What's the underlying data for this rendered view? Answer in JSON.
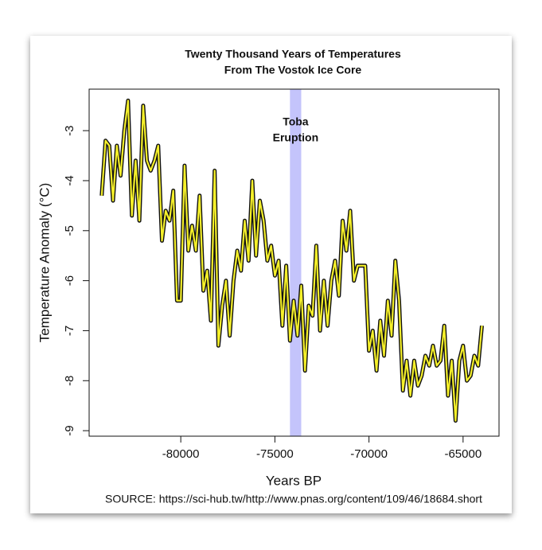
{
  "chart_data": {
    "type": "line",
    "title": "Twenty Thousand Years of Temperatures",
    "subtitle": "From The Vostok Ice Core",
    "xlabel": "Years BP",
    "ylabel": "Temperature Anomaly (°C)",
    "source": "SOURCE: https://sci-hub.tw/http://www.pnas.org/content/109/46/18684.short",
    "annotation": [
      "Toba",
      "Eruption"
    ],
    "band": [
      -74200,
      -73600
    ],
    "band_color": "#c4c4fb",
    "x": [
      -84200,
      -84000,
      -83800,
      -83600,
      -83400,
      -83200,
      -83000,
      -82800,
      -82600,
      -82400,
      -82200,
      -82000,
      -81800,
      -81600,
      -81400,
      -81200,
      -81000,
      -80800,
      -80600,
      -80400,
      -80200,
      -80000,
      -79800,
      -79600,
      -79400,
      -79200,
      -79000,
      -78800,
      -78600,
      -78400,
      -78200,
      -78000,
      -77800,
      -77600,
      -77400,
      -77200,
      -77000,
      -76800,
      -76600,
      -76400,
      -76200,
      -76000,
      -75800,
      -75600,
      -75400,
      -75200,
      -75000,
      -74800,
      -74600,
      -74400,
      -74200,
      -74000,
      -73800,
      -73600,
      -73400,
      -73200,
      -73000,
      -72800,
      -72600,
      -72400,
      -72200,
      -72000,
      -71800,
      -71600,
      -71400,
      -71200,
      -71000,
      -70800,
      -70600,
      -70400,
      -70200,
      -70000,
      -69800,
      -69600,
      -69400,
      -69200,
      -69000,
      -68800,
      -68600,
      -68400,
      -68200,
      -68000,
      -67800,
      -67600,
      -67400,
      -67200,
      -67000,
      -66800,
      -66600,
      -66400,
      -66200,
      -66000,
      -65800,
      -65600,
      -65400,
      -65200,
      -65000,
      -64800,
      -64600,
      -64400,
      -64200,
      -64000
    ],
    "series": [
      {
        "color": "#f5f02a",
        "outline": "#111111",
        "values": [
          -4.3,
          -3.2,
          -3.3,
          -4.4,
          -3.3,
          -3.9,
          -3.0,
          -2.4,
          -4.7,
          -3.6,
          -4.8,
          -2.5,
          -3.6,
          -3.8,
          -3.6,
          -3.3,
          -5.2,
          -4.6,
          -4.8,
          -4.2,
          -6.4,
          -6.4,
          -3.7,
          -5.4,
          -4.9,
          -5.4,
          -4.3,
          -6.2,
          -5.8,
          -6.8,
          -3.8,
          -7.3,
          -6.5,
          -6.0,
          -7.1,
          -6.0,
          -5.4,
          -5.8,
          -4.8,
          -5.6,
          -4.0,
          -5.5,
          -4.4,
          -4.8,
          -5.6,
          -5.3,
          -5.9,
          -5.6,
          -6.9,
          -5.7,
          -7.2,
          -6.4,
          -7.1,
          -6.1,
          -7.8,
          -6.5,
          -6.7,
          -5.3,
          -7.0,
          -6.0,
          -6.9,
          -6.0,
          -5.6,
          -6.3,
          -4.8,
          -5.4,
          -4.6,
          -6.0,
          -5.7,
          -5.7,
          -5.7,
          -7.4,
          -7.0,
          -7.8,
          -6.8,
          -7.5,
          -6.4,
          -7.1,
          -5.6,
          -6.4,
          -8.2,
          -7.6,
          -8.3,
          -7.6,
          -8.1,
          -7.9,
          -7.5,
          -7.7,
          -7.3,
          -7.7,
          -7.6,
          -6.9,
          -8.3,
          -7.6,
          -8.8,
          -7.6,
          -7.3,
          -8.0,
          -7.9,
          -7.5,
          -7.7,
          -6.9
        ]
      }
    ],
    "xlim": [
      -84870,
      -63090
    ],
    "ylim": [
      -9.11,
      -2.17
    ],
    "xticks": [
      -80000,
      -75000,
      -70000,
      -65000
    ],
    "yticks": [
      -9,
      -8,
      -7,
      -6,
      -5,
      -4,
      -3
    ]
  }
}
